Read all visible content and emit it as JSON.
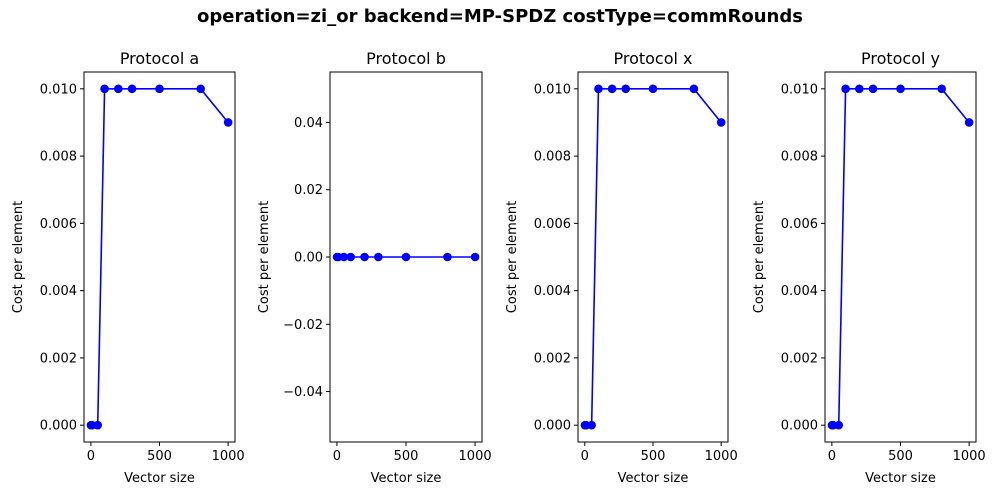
{
  "figure": {
    "suptitle": "operation=zi_or backend=MP-SPDZ costType=commRounds"
  },
  "colors": {
    "series": "#0000ff",
    "axis": "#000000",
    "background": "#ffffff"
  },
  "chart_data": [
    {
      "type": "line",
      "title": "Protocol a",
      "xlabel": "Vector size",
      "ylabel": "Cost per element",
      "x": [
        1,
        10,
        50,
        100,
        200,
        300,
        500,
        800,
        1000
      ],
      "y": [
        0.0,
        0.0,
        0.0,
        0.01,
        0.01,
        0.01,
        0.01,
        0.01,
        0.009
      ],
      "xlim": [
        -50,
        1050
      ],
      "ylim": [
        -0.0005,
        0.0105
      ],
      "xticks": [
        0,
        500,
        1000
      ],
      "xtick_labels": [
        "0",
        "500",
        "1000"
      ],
      "yticks": [
        0.0,
        0.002,
        0.004,
        0.006,
        0.008,
        0.01
      ],
      "ytick_labels": [
        "0.000",
        "0.002",
        "0.004",
        "0.006",
        "0.008",
        "0.010"
      ],
      "marker": "circle",
      "grid": false
    },
    {
      "type": "line",
      "title": "Protocol b",
      "xlabel": "Vector size",
      "ylabel": "Cost per element",
      "x": [
        1,
        10,
        50,
        100,
        200,
        300,
        500,
        800,
        1000
      ],
      "y": [
        0,
        0,
        0,
        0,
        0,
        0,
        0,
        0,
        0
      ],
      "xlim": [
        -50,
        1050
      ],
      "ylim": [
        -0.055,
        0.055
      ],
      "xticks": [
        0,
        500,
        1000
      ],
      "xtick_labels": [
        "0",
        "500",
        "1000"
      ],
      "yticks": [
        -0.04,
        -0.02,
        0.0,
        0.02,
        0.04
      ],
      "ytick_labels": [
        "−0.04",
        "−0.02",
        "0.00",
        "0.02",
        "0.04"
      ],
      "marker": "circle",
      "grid": false
    },
    {
      "type": "line",
      "title": "Protocol x",
      "xlabel": "Vector size",
      "ylabel": "Cost per element",
      "x": [
        1,
        10,
        50,
        100,
        200,
        300,
        500,
        800,
        1000
      ],
      "y": [
        0.0,
        0.0,
        0.0,
        0.01,
        0.01,
        0.01,
        0.01,
        0.01,
        0.009
      ],
      "xlim": [
        -50,
        1050
      ],
      "ylim": [
        -0.0005,
        0.0105
      ],
      "xticks": [
        0,
        500,
        1000
      ],
      "xtick_labels": [
        "0",
        "500",
        "1000"
      ],
      "yticks": [
        0.0,
        0.002,
        0.004,
        0.006,
        0.008,
        0.01
      ],
      "ytick_labels": [
        "0.000",
        "0.002",
        "0.004",
        "0.006",
        "0.008",
        "0.010"
      ],
      "marker": "circle",
      "grid": false
    },
    {
      "type": "line",
      "title": "Protocol y",
      "xlabel": "Vector size",
      "ylabel": "Cost per element",
      "x": [
        1,
        10,
        50,
        100,
        200,
        300,
        500,
        800,
        1000
      ],
      "y": [
        0.0,
        0.0,
        0.0,
        0.01,
        0.01,
        0.01,
        0.01,
        0.01,
        0.009
      ],
      "xlim": [
        -50,
        1050
      ],
      "ylim": [
        -0.0005,
        0.0105
      ],
      "xticks": [
        0,
        500,
        1000
      ],
      "xtick_labels": [
        "0",
        "500",
        "1000"
      ],
      "yticks": [
        0.0,
        0.002,
        0.004,
        0.006,
        0.008,
        0.01
      ],
      "ytick_labels": [
        "0.000",
        "0.002",
        "0.004",
        "0.006",
        "0.008",
        "0.010"
      ],
      "marker": "circle",
      "grid": false
    }
  ]
}
